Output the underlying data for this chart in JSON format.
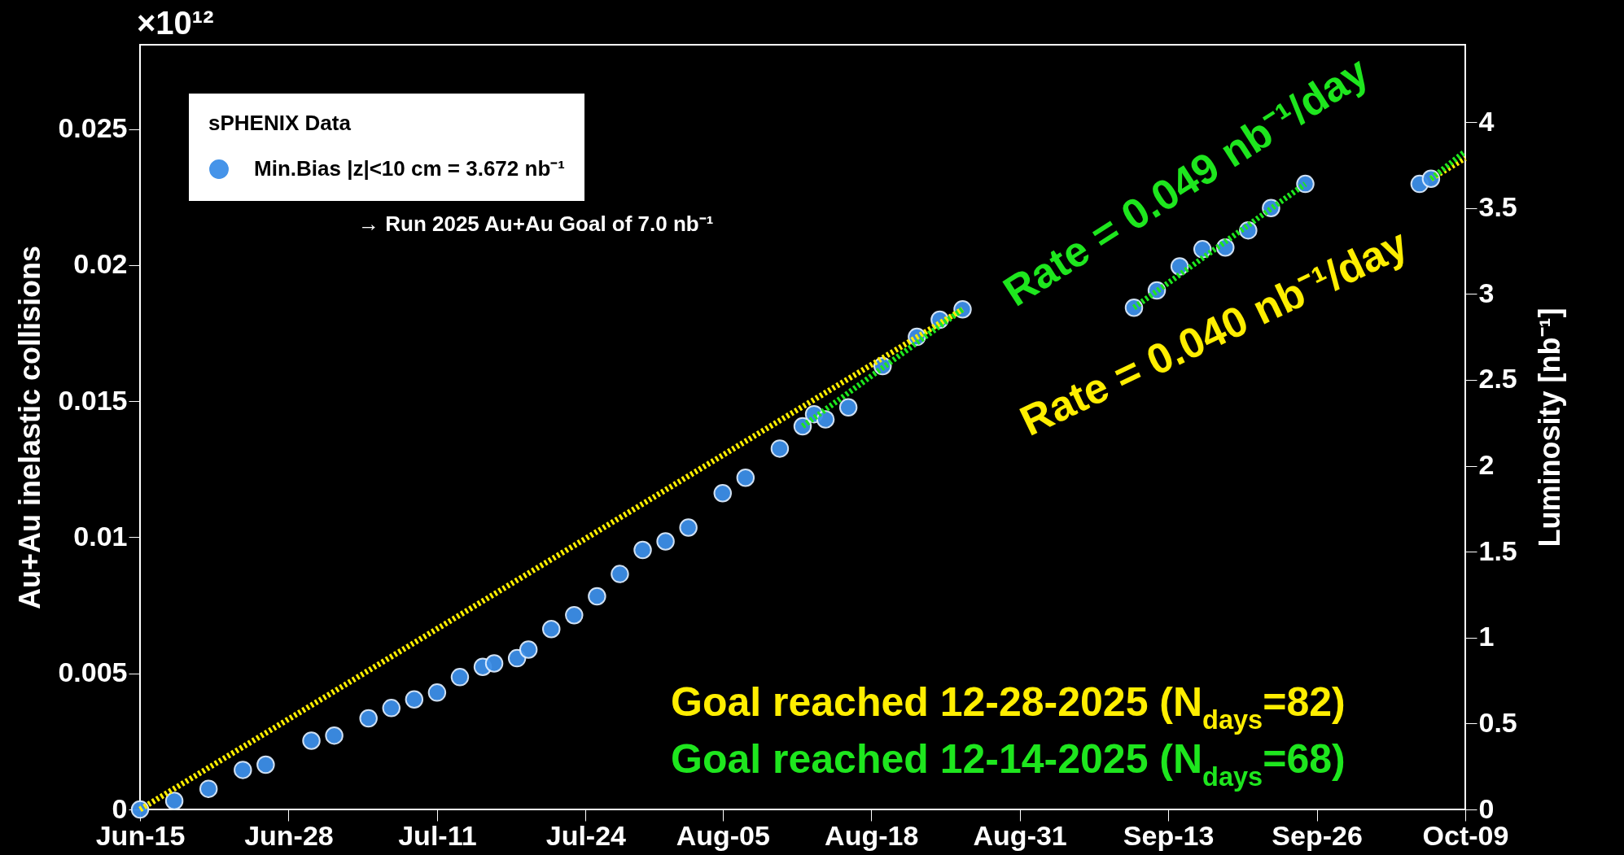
{
  "chart_data": {
    "type": "scatter",
    "xlabel": null,
    "ylabel": "Au+Au inelastic collisions",
    "y2label": "Luminosity [nb⁻¹]",
    "legend_title": "sPHENIX Data",
    "legend": "top left",
    "marker": "circle",
    "line_style": "dotted",
    "xlim": [
      "2025-06-15",
      "2025-10-09"
    ],
    "xticks": [
      {
        "value": "2025-06-15",
        "label": "Jun-15"
      },
      {
        "value": "2025-06-28",
        "label": "Jun-28"
      },
      {
        "value": "2025-07-11",
        "label": "Jul-11"
      },
      {
        "value": "2025-07-24",
        "label": "Jul-24"
      },
      {
        "value": "2025-08-05",
        "label": "Aug-05"
      },
      {
        "value": "2025-08-18",
        "label": "Aug-18"
      },
      {
        "value": "2025-08-31",
        "label": "Aug-31"
      },
      {
        "value": "2025-09-13",
        "label": "Sep-13"
      },
      {
        "value": "2025-09-26",
        "label": "Sep-26"
      },
      {
        "value": "2025-10-09",
        "label": "Oct-09"
      }
    ],
    "ylim": [
      0,
      0.0281
    ],
    "yticks": [
      0,
      0.005,
      0.01,
      0.015,
      0.02,
      0.025
    ],
    "y2lim": [
      0,
      4.45
    ],
    "y2ticks": [
      0,
      0.5,
      1,
      1.5,
      2,
      2.5,
      3,
      3.5,
      4
    ],
    "annotations": [
      "×10¹²",
      "→ Run 2025 Au+Au Goal of 7.0 nb⁻¹",
      "Rate = 0.049 nb⁻¹/day",
      "Rate = 0.040 nb⁻¹/day",
      "Goal reached 12-28-2025 (N$_{days}$=82)",
      "Goal reached 12-14-2025 (N$_{days}$=68)"
    ],
    "series": [
      {
        "name": "Min.Bias |z|<10 cm = 3.672 nb⁻¹",
        "axis": "y2",
        "color": "#3d8fe8",
        "x": [
          "2025-06-15",
          "2025-06-18",
          "2025-06-21",
          "2025-06-24",
          "2025-06-26",
          "2025-06-30",
          "2025-07-02",
          "2025-07-05",
          "2025-07-07",
          "2025-07-09",
          "2025-07-11",
          "2025-07-13",
          "2025-07-15",
          "2025-07-16",
          "2025-07-18",
          "2025-07-19",
          "2025-07-21",
          "2025-07-23",
          "2025-07-25",
          "2025-07-27",
          "2025-07-29",
          "2025-07-31",
          "2025-08-02",
          "2025-08-05",
          "2025-08-07",
          "2025-08-10",
          "2025-08-12",
          "2025-08-13",
          "2025-08-14",
          "2025-08-16",
          "2025-08-19",
          "2025-08-22",
          "2025-08-24",
          "2025-08-26",
          "2025-09-10",
          "2025-09-12",
          "2025-09-14",
          "2025-09-16",
          "2025-09-18",
          "2025-09-20",
          "2025-09-22",
          "2025-09-25",
          "2025-10-05",
          "2025-10-06"
        ],
        "values": [
          0,
          0.05,
          0.12,
          0.23,
          0.26,
          0.4,
          0.43,
          0.53,
          0.59,
          0.64,
          0.68,
          0.77,
          0.83,
          0.85,
          0.88,
          0.93,
          1.05,
          1.13,
          1.24,
          1.37,
          1.51,
          1.56,
          1.64,
          1.84,
          1.93,
          2.1,
          2.23,
          2.3,
          2.27,
          2.34,
          2.58,
          2.75,
          2.85,
          2.91,
          2.92,
          3.02,
          3.16,
          3.26,
          3.27,
          3.37,
          3.5,
          3.64,
          3.64,
          3.67
        ]
      },
      {
        "type": "line",
        "marker": "none",
        "axis": "y2",
        "color": "#ffee00",
        "x": [
          "2025-06-15",
          "2025-08-26"
        ],
        "values": [
          0,
          2.91
        ]
      },
      {
        "type": "line",
        "marker": "none",
        "axis": "y2",
        "color": "#ffee00",
        "x": [
          "2025-10-06",
          "2025-10-09"
        ],
        "values": [
          3.67,
          3.79
        ]
      },
      {
        "type": "line",
        "marker": "none",
        "axis": "y2",
        "color": "#1ee61e",
        "x": [
          "2025-08-12",
          "2025-08-26"
        ],
        "values": [
          2.23,
          2.91
        ]
      },
      {
        "type": "line",
        "marker": "none",
        "axis": "y2",
        "color": "#1ee61e",
        "x": [
          "2025-09-10",
          "2025-09-25"
        ],
        "values": [
          2.92,
          3.64
        ]
      },
      {
        "type": "line",
        "marker": "none",
        "axis": "y2",
        "color": "#1ee61e",
        "x": [
          "2025-10-06",
          "2025-10-09"
        ],
        "values": [
          3.67,
          3.83
        ]
      }
    ]
  }
}
